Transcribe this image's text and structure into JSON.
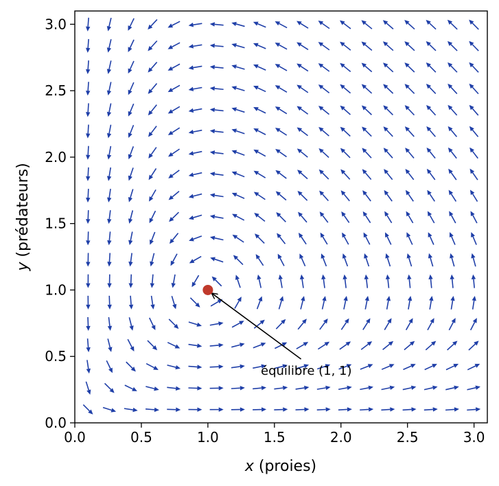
{
  "chart_data": {
    "type": "quiver",
    "system": "lotka-volterra",
    "vector_field": {
      "dx": "x*(1-y)",
      "dy": "y*(x-1)"
    },
    "xlabel_var": "x",
    "xlabel_rest": " (proies)",
    "ylabel_var": "y",
    "ylabel_rest": " (prédateurs)",
    "xlim": [
      0,
      3.1
    ],
    "ylim": [
      0,
      3.1
    ],
    "xticks": [
      "0.0",
      "0.5",
      "1.0",
      "1.5",
      "2.0",
      "2.5",
      "3.0"
    ],
    "yticks": [
      "0.0",
      "0.5",
      "1.0",
      "1.5",
      "2.0",
      "2.5",
      "3.0"
    ],
    "grid": {
      "start": 0.1,
      "step": 0.161,
      "count": 19
    },
    "arrow_color": "#1f3fa8",
    "equilibrium": {
      "x": 1,
      "y": 1,
      "color": "#c0392b"
    },
    "annotation": {
      "text": "équilibre (1, 1)",
      "tail": [
        1.7,
        0.48
      ],
      "head": [
        1,
        1
      ]
    }
  }
}
